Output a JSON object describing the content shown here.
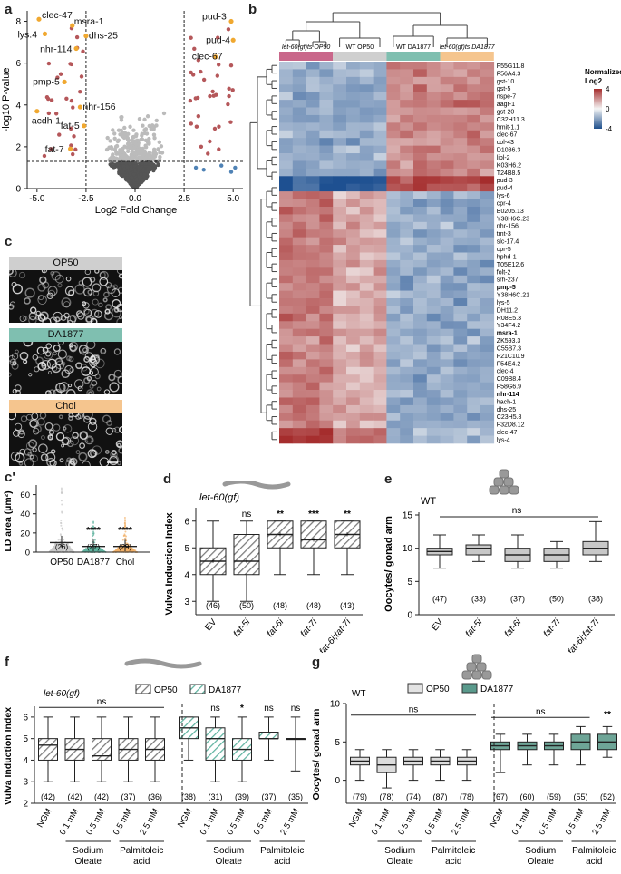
{
  "panels": {
    "a": "a",
    "b": "b",
    "c": "c",
    "c2": "c'",
    "d": "d",
    "e": "e",
    "f": "f",
    "g": "g"
  },
  "volcano": {
    "xlabel": "Log2 Fold Change",
    "ylabel": "-log10 P-value",
    "xticks": [
      "-5.0",
      "-2.5",
      "0.0",
      "2.5",
      "5.0"
    ],
    "yticks": [
      "0",
      "2",
      "4",
      "6",
      "8"
    ],
    "labels": [
      "clec-47",
      "msra-1",
      "lys.4",
      "dhs-25",
      "nhr-114",
      "pmp-5",
      "nhr-156",
      "acdh-1",
      "fat-5",
      "fat-7",
      "pud-3",
      "pud-4",
      "clec-67"
    ]
  },
  "heatmap": {
    "groups": [
      "let-60(gf)ts OP50",
      "WT OP50",
      "WT DA1877",
      "let-60(gf)ts DA1877"
    ],
    "group_colors": [
      "#c9678a",
      "#cfcfcf",
      "#7fbfb0",
      "#f5c58e"
    ],
    "legend_title": "Normalized Log2",
    "legend_ticks": [
      "4",
      "0",
      "-4"
    ],
    "genes": [
      "F55G11.8",
      "F56A4.3",
      "gst-10",
      "gst-5",
      "nspe-7",
      "aagr-1",
      "gst-20",
      "C32H11.3",
      "hmit-1.1",
      "clec-67",
      "col-43",
      "D1086.3",
      "lipl-2",
      "K03H6.2",
      "T24B8.5",
      "pud-3",
      "pud-4",
      "lys-6",
      "cpr-4",
      "B0205.13",
      "Y38H6C.23",
      "nhr-156",
      "tmt-3",
      "slc-17.4",
      "cpr-5",
      "hphd-1",
      "T05E12.6",
      "folt-2",
      "srh-237",
      "pmp-5",
      "Y38H6C.21",
      "lys-5",
      "DH11.2",
      "R08E5.3",
      "Y34F4.2",
      "msra-1",
      "ZK593.3",
      "C55B7.3",
      "F21C10.9",
      "F54E4.2",
      "clec-4",
      "C09B8.4",
      "F58G6.9",
      "nhr-114",
      "hach-1",
      "dhs-25",
      "C23H5.8",
      "F32D8.12",
      "clec-47",
      "lys-4"
    ],
    "bold_genes": [
      "pmp-5",
      "msra-1",
      "nhr-114"
    ]
  },
  "micrographs": {
    "labels": [
      "OP50",
      "DA1877",
      "Chol"
    ],
    "label_colors": [
      "#cfcfcf",
      "#7fbfb0",
      "#f5c58e"
    ]
  },
  "ld_area": {
    "ylabel": "LD area (µm²)",
    "yticks": [
      "0",
      "20",
      "40",
      "60"
    ],
    "categories": [
      "OP50",
      "DA1877",
      "Chol"
    ],
    "n": [
      "(26)",
      "(27)",
      "(29)"
    ],
    "sig": [
      "",
      "****",
      "****"
    ],
    "colors": [
      "#c8c8c8",
      "#5fb3a0",
      "#f2b068"
    ]
  },
  "panel_d": {
    "title": "let-60(gf)",
    "ylabel": "Vulva Induction Index",
    "yticks": [
      "3",
      "4",
      "5",
      "6"
    ],
    "categories": [
      "EV",
      "fat-5i",
      "fat-6i",
      "fat-7i",
      "fat-6i;fat-7i"
    ],
    "n": [
      "(46)",
      "(50)",
      "(48)",
      "(48)",
      "(43)"
    ],
    "sig": [
      "",
      "ns",
      "**",
      "***",
      "**"
    ]
  },
  "panel_e": {
    "title": "WT",
    "ylabel": "Oocytes/ gonad arm",
    "yticks": [
      "0",
      "5",
      "10",
      "15"
    ],
    "categories": [
      "EV",
      "fat-5i",
      "fat-6i",
      "fat-7i",
      "fat-6i;fat-7i"
    ],
    "n": [
      "(47)",
      "(33)",
      "(37)",
      "(50)",
      "(38)"
    ],
    "sig": "ns"
  },
  "panel_f": {
    "title": "let-60(gf)",
    "legend": [
      "OP50",
      "DA1877"
    ],
    "ylabel": "Vulva Induction Index",
    "yticks": [
      "2",
      "3",
      "4",
      "5",
      "6"
    ],
    "categories": [
      "NGM",
      "0.1 mM",
      "0.5 mM",
      "0.5 mM",
      "2.5 mM"
    ],
    "groups": [
      "Sodium Oleate",
      "Palmitoleic acid"
    ],
    "n": [
      "(42)",
      "(42)",
      "(42)",
      "(37)",
      "(36)",
      "(38)",
      "(31)",
      "(39)",
      "(37)",
      "(35)"
    ],
    "sig_left": "ns",
    "sig_right": [
      "ns",
      "*",
      "ns",
      "ns"
    ]
  },
  "panel_g": {
    "title": "WT",
    "legend": [
      "OP50",
      "DA1877"
    ],
    "ylabel": "Oocytes/ gonad arm",
    "yticks": [
      "0",
      "5",
      "10",
      "15"
    ],
    "categories": [
      "NGM",
      "0.1 mM",
      "0.5 mM",
      "0.5 mM",
      "2.5 mM"
    ],
    "groups": [
      "Sodium Oleate",
      "Palmitoleic acid"
    ],
    "n": [
      "(79)",
      "(78)",
      "(74)",
      "(87)",
      "(78)",
      "(67)",
      "(60)",
      "(59)",
      "(55)",
      "(52)"
    ],
    "sig_left": "ns",
    "sig_right_ns": "ns",
    "sig_right_last": "**"
  },
  "chart_data": [
    {
      "type": "scatter",
      "title": "",
      "xlabel": "Log2 Fold Change",
      "ylabel": "-log10 P-value",
      "xlim": [
        -5.5,
        5.5
      ],
      "ylim": [
        0,
        8.5
      ],
      "labeled_points": [
        {
          "name": "clec-47",
          "x": -4.9,
          "y": 8.1
        },
        {
          "name": "msra-1",
          "x": -3.2,
          "y": 7.8
        },
        {
          "name": "lys.4",
          "x": -4.6,
          "y": 7.4
        },
        {
          "name": "dhs-25",
          "x": -2.5,
          "y": 7.3
        },
        {
          "name": "nhr-114",
          "x": -3.0,
          "y": 6.7
        },
        {
          "name": "pmp-5",
          "x": -3.6,
          "y": 5.1
        },
        {
          "name": "nhr-156",
          "x": -2.8,
          "y": 3.9
        },
        {
          "name": "acdh-1",
          "x": -5.0,
          "y": 3.7
        },
        {
          "name": "fat-5",
          "x": -2.6,
          "y": 3.0
        },
        {
          "name": "fat-7",
          "x": -3.3,
          "y": 1.9
        },
        {
          "name": "pud-3",
          "x": 4.9,
          "y": 8.0
        },
        {
          "name": "pud-4",
          "x": 5.0,
          "y": 7.1
        },
        {
          "name": "clec-67",
          "x": 4.1,
          "y": 6.3
        }
      ],
      "thresholds": {
        "x": [
          -2.5,
          2.5
        ],
        "y": 1.3
      }
    },
    {
      "type": "box",
      "title": "let-60(gf)",
      "ylabel": "Vulva Induction Index",
      "ylim": [
        2.5,
        6.5
      ],
      "categories": [
        "EV",
        "fat-5i",
        "fat-6i",
        "fat-7i",
        "fat-6i;fat-7i"
      ],
      "boxes": [
        {
          "min": 3,
          "q1": 4,
          "median": 4.5,
          "q3": 5,
          "max": 6
        },
        {
          "min": 3,
          "q1": 4,
          "median": 4.5,
          "q3": 5.5,
          "max": 6
        },
        {
          "min": 4,
          "q1": 5,
          "median": 5.5,
          "q3": 6,
          "max": 6
        },
        {
          "min": 4,
          "q1": 5,
          "median": 5.3,
          "q3": 6,
          "max": 6
        },
        {
          "min": 4,
          "q1": 5,
          "median": 5.5,
          "q3": 6,
          "max": 6
        }
      ]
    },
    {
      "type": "box",
      "title": "WT",
      "ylabel": "Oocytes/ gonad arm",
      "ylim": [
        0,
        15
      ],
      "categories": [
        "EV",
        "fat-5i",
        "fat-6i",
        "fat-7i",
        "fat-6i;fat-7i"
      ],
      "boxes": [
        {
          "min": 7,
          "q1": 9,
          "median": 9.5,
          "q3": 10,
          "max": 12
        },
        {
          "min": 8,
          "q1": 9,
          "median": 10,
          "q3": 10.5,
          "max": 12
        },
        {
          "min": 7,
          "q1": 8,
          "median": 9,
          "q3": 10,
          "max": 12
        },
        {
          "min": 7,
          "q1": 8,
          "median": 9,
          "q3": 10,
          "max": 11
        },
        {
          "min": 8,
          "q1": 9,
          "median": 10,
          "q3": 11,
          "max": 14
        }
      ]
    },
    {
      "type": "box",
      "title": "let-60(gf)",
      "ylabel": "Vulva Induction Index",
      "ylim": [
        2,
        6.5
      ],
      "series": [
        {
          "name": "OP50",
          "boxes": [
            {
              "min": 3,
              "q1": 4,
              "median": 4.7,
              "q3": 5,
              "max": 6
            },
            {
              "min": 3,
              "q1": 4,
              "median": 4.5,
              "q3": 5,
              "max": 6
            },
            {
              "min": 3,
              "q1": 4,
              "median": 4.2,
              "q3": 5,
              "max": 6
            },
            {
              "min": 3,
              "q1": 4,
              "median": 4.5,
              "q3": 5,
              "max": 6
            },
            {
              "min": 3,
              "q1": 4,
              "median": 4.5,
              "q3": 5,
              "max": 6
            }
          ]
        },
        {
          "name": "DA1877",
          "boxes": [
            {
              "min": 4,
              "q1": 5,
              "median": 5.5,
              "q3": 6,
              "max": 6
            },
            {
              "min": 3,
              "q1": 4,
              "median": 5,
              "q3": 5.5,
              "max": 6
            },
            {
              "min": 3,
              "q1": 4,
              "median": 4.5,
              "q3": 5,
              "max": 6
            },
            {
              "min": 4,
              "q1": 5,
              "median": 5,
              "q3": 5.3,
              "max": 6
            },
            {
              "min": 3.5,
              "q1": 5,
              "median": 5,
              "q3": 5,
              "max": 6
            }
          ]
        }
      ]
    },
    {
      "type": "box",
      "title": "WT",
      "ylabel": "Oocytes/ gonad arm",
      "ylim": [
        2,
        15
      ],
      "series": [
        {
          "name": "OP50",
          "boxes": [
            {
              "min": 5,
              "q1": 7,
              "median": 7.5,
              "q3": 8,
              "max": 9
            },
            {
              "min": 4,
              "q1": 6,
              "median": 7,
              "q3": 8,
              "max": 9
            },
            {
              "min": 5,
              "q1": 7,
              "median": 7.5,
              "q3": 8,
              "max": 9
            },
            {
              "min": 5,
              "q1": 7,
              "median": 7.5,
              "q3": 8,
              "max": 9
            },
            {
              "min": 5,
              "q1": 7,
              "median": 7.5,
              "q3": 8,
              "max": 9
            }
          ]
        },
        {
          "name": "DA1877",
          "boxes": [
            {
              "min": 6,
              "q1": 9,
              "median": 9.5,
              "q3": 10,
              "max": 11
            },
            {
              "min": 7,
              "q1": 9,
              "median": 9.5,
              "q3": 10,
              "max": 11
            },
            {
              "min": 7,
              "q1": 9,
              "median": 9.5,
              "q3": 10,
              "max": 11
            },
            {
              "min": 7,
              "q1": 9,
              "median": 10,
              "q3": 11,
              "max": 12
            },
            {
              "min": 8,
              "q1": 9,
              "median": 10,
              "q3": 11,
              "max": 12
            }
          ]
        }
      ]
    }
  ]
}
